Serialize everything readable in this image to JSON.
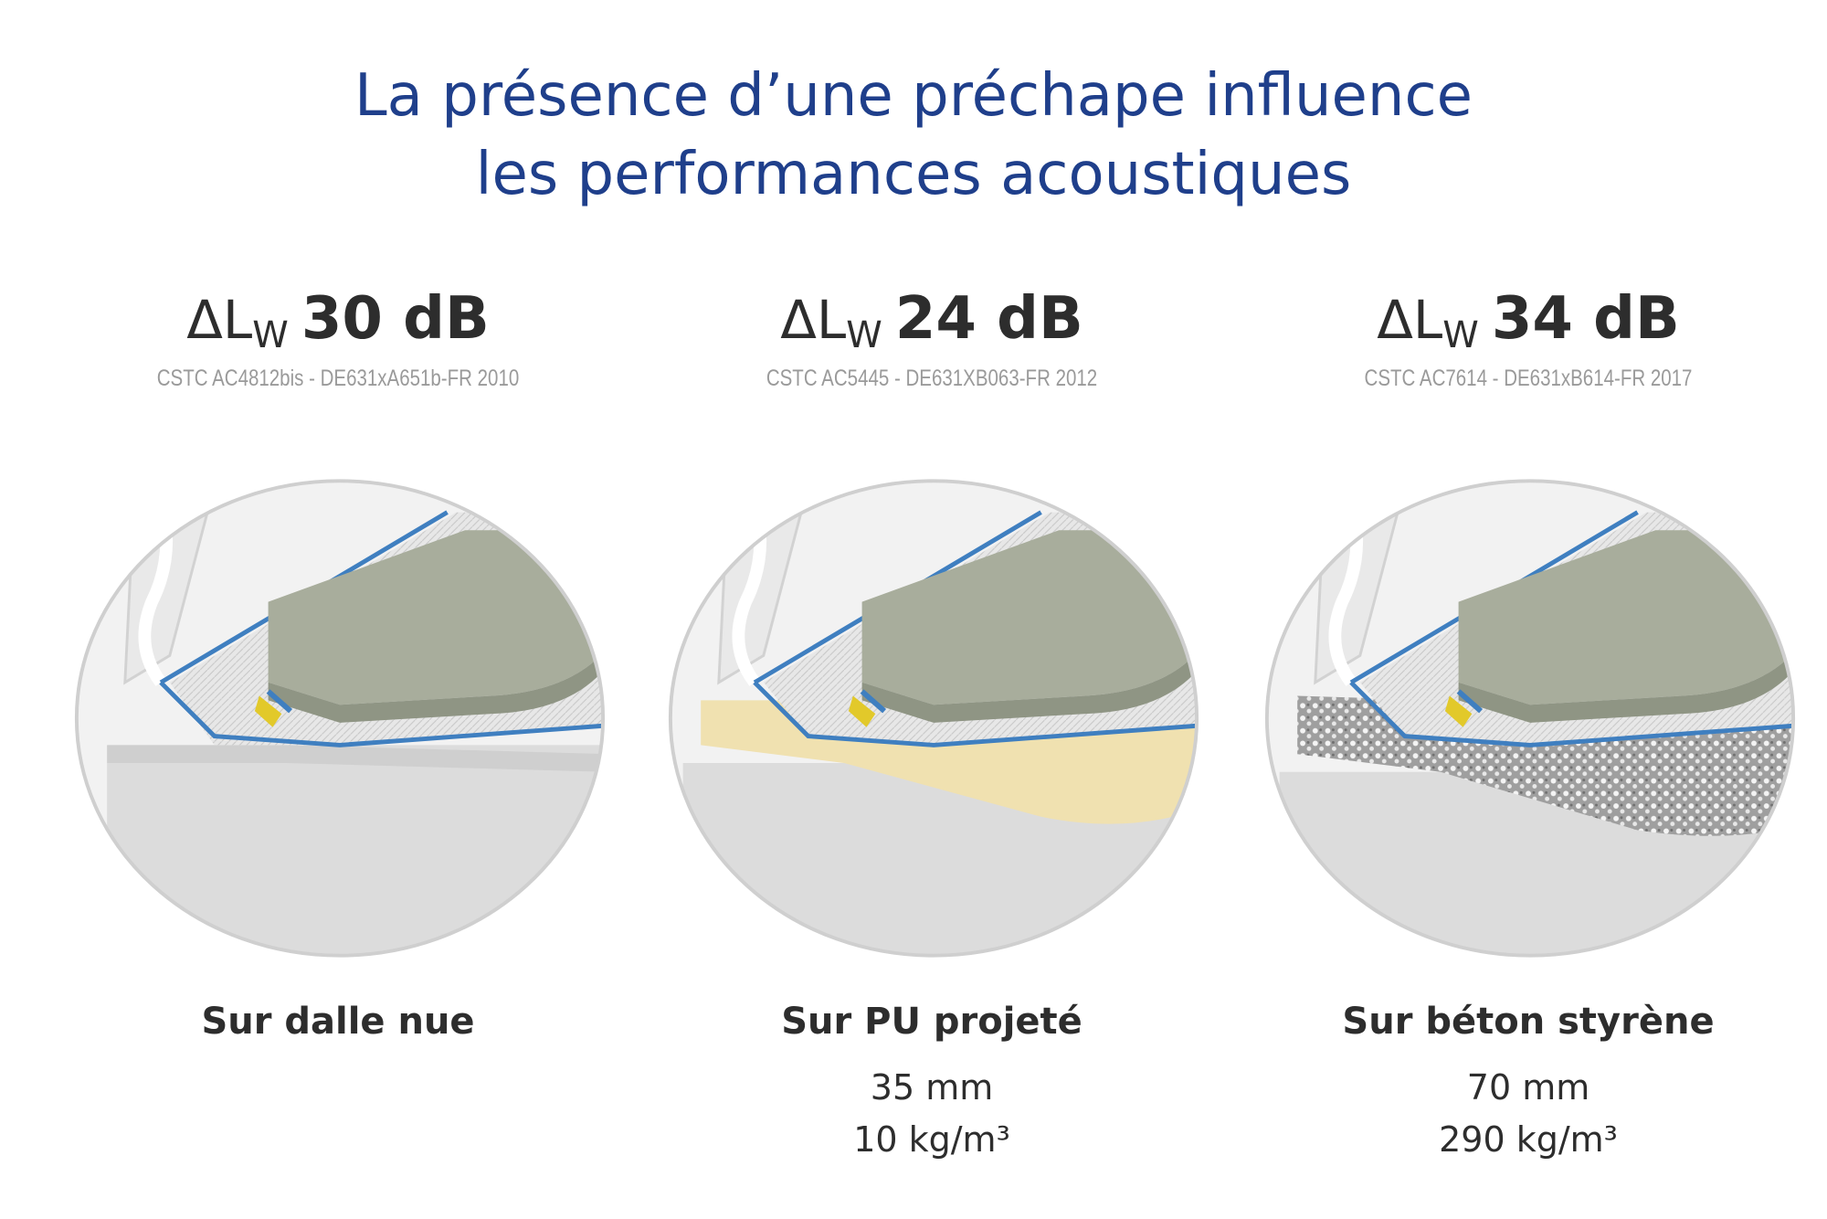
{
  "header": {
    "title_line1": "La présence d’une préchape influence",
    "title_line2": "les performances acoustiques"
  },
  "colors": {
    "title": "#1f3f8b",
    "text": "#2d2d2d",
    "reference": "#9a9a9a",
    "screed": "#a8ad9c",
    "membrane": "#3f7fc0",
    "slab": "#dcdcdc",
    "pu_layer": "#f0e1b0",
    "styrene_concrete": "#b8b8b8"
  },
  "panels": [
    {
      "delta": "ΔL",
      "subscript": "W",
      "value": "30 dB",
      "reference": "CSTC AC4812bis - DE631xA651b-FR 2010",
      "label": "Sur dalle nue",
      "detail1": "",
      "detail2": ""
    },
    {
      "delta": "ΔL",
      "subscript": "W",
      "value": "24 dB",
      "reference": "CSTC AC5445 - DE631XB063-FR 2012",
      "label": "Sur PU projeté",
      "detail1": "35 mm",
      "detail2": "10 kg/m³"
    },
    {
      "delta": "ΔL",
      "subscript": "W",
      "value": "34 dB",
      "reference": "CSTC AC7614 - DE631xB614-FR 2017",
      "label": "Sur béton styrène",
      "detail1": "70 mm",
      "detail2": "290 kg/m³"
    }
  ]
}
